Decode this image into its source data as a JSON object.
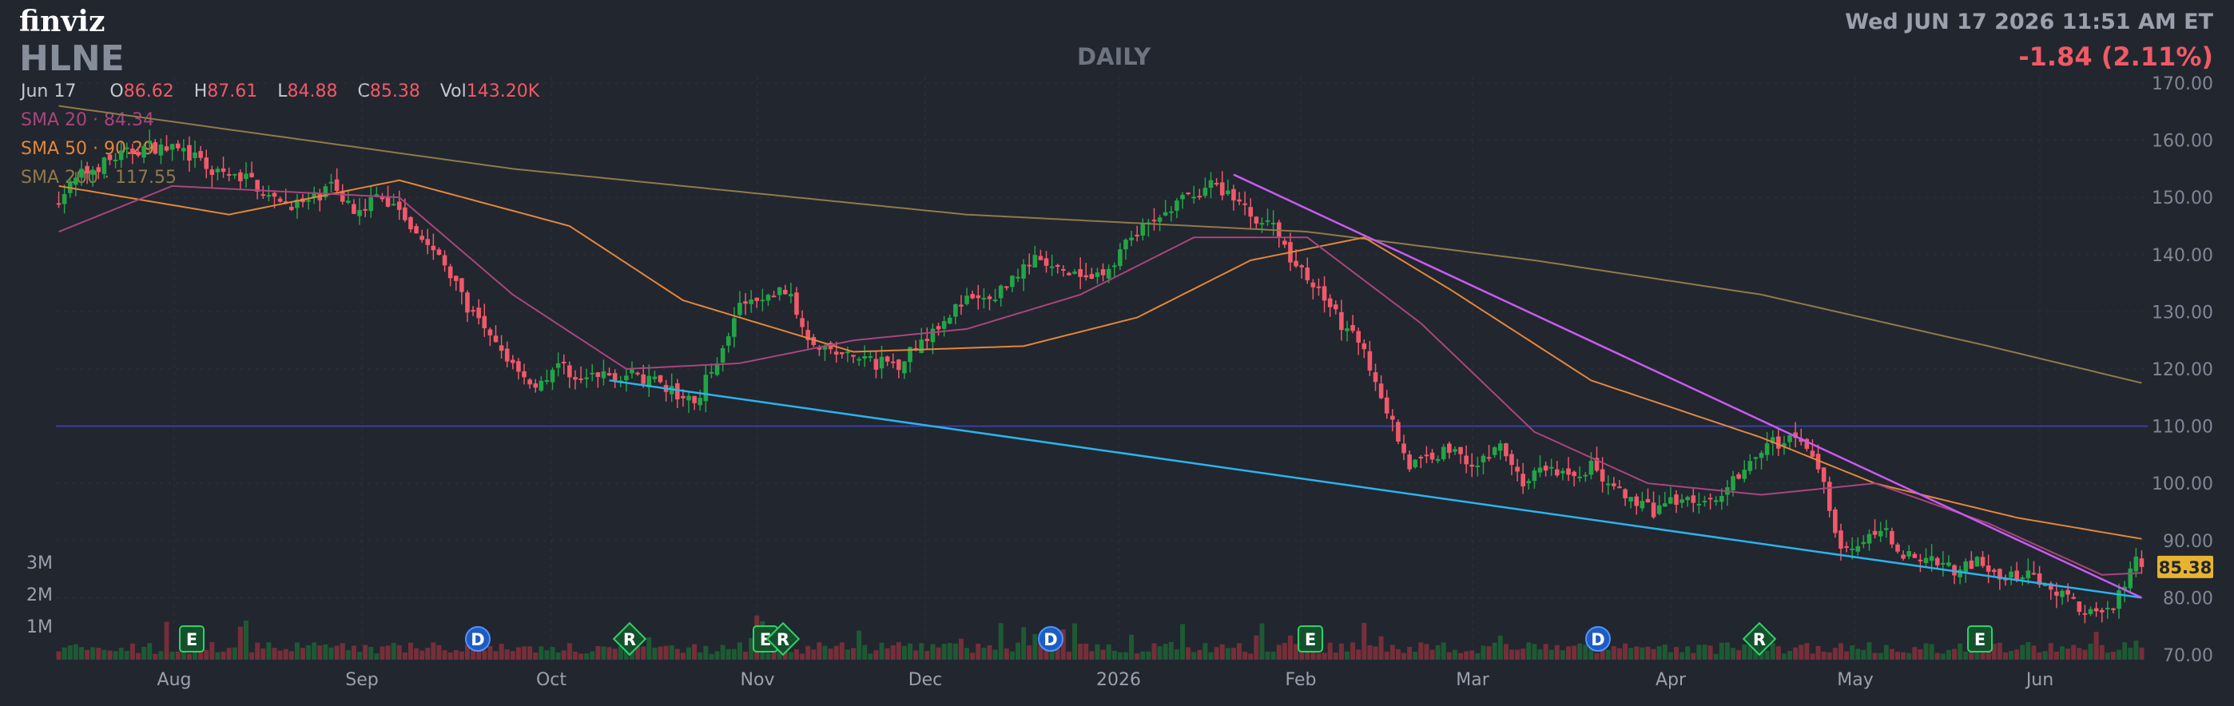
{
  "header": {
    "logo": "finviz",
    "ticker": "HLNE",
    "period": "DAILY",
    "datetime": "Wed JUN 17 2026 11:51 AM ET",
    "change": "-1.84 (2.11%)"
  },
  "ohlc": {
    "date": "Jun 17",
    "open_label": "O",
    "open": "86.62",
    "high_label": "H",
    "high": "87.61",
    "low_label": "L",
    "low": "84.88",
    "close_label": "C",
    "close": "85.38",
    "vol_label": "Vol",
    "vol": "143.20K"
  },
  "sma": [
    {
      "label": "SMA 20",
      "value": "84.34",
      "color": "#a8457e"
    },
    {
      "label": "SMA 50",
      "value": "90.29",
      "color": "#e3873a"
    },
    {
      "label": "SMA 200",
      "value": "117.55",
      "color": "#8f7a4a"
    }
  ],
  "price_tag": "85.38",
  "colors": {
    "up": "#22a447",
    "down": "#f0596a",
    "bg": "#22262f",
    "blue_trend": "#2ab4ee",
    "magenta_trend": "#c75bf0"
  },
  "chart_data": {
    "type": "candlestick",
    "y_ticks": [
      "170.00",
      "160.00",
      "150.00",
      "140.00",
      "130.00",
      "120.00",
      "110.00",
      "100.00",
      "90.00",
      "80.00",
      "70.00"
    ],
    "ylim": [
      70,
      170
    ],
    "volume_ticks": [
      "3M",
      "2M",
      "1M"
    ],
    "x_labels": [
      "Aug",
      "Sep",
      "Oct",
      "Nov",
      "Dec",
      "2026",
      "Feb",
      "Mar",
      "Apr",
      "May",
      "Jun"
    ],
    "horizontal_line": 110,
    "events": [
      {
        "label": "E",
        "kind": "earnings",
        "month": "Aug"
      },
      {
        "label": "D",
        "kind": "dividend",
        "month": "Sep"
      },
      {
        "label": "R",
        "kind": "rating",
        "month": "Oct"
      },
      {
        "label": "E",
        "kind": "earnings",
        "month": "Nov"
      },
      {
        "label": "R",
        "kind": "rating",
        "month": "Nov"
      },
      {
        "label": "D",
        "kind": "dividend",
        "month": "Dec"
      },
      {
        "label": "E",
        "kind": "earnings",
        "month": "Feb"
      },
      {
        "label": "D",
        "kind": "dividend",
        "month": "Mar"
      },
      {
        "label": "R",
        "kind": "rating",
        "month": "Apr"
      },
      {
        "label": "E",
        "kind": "earnings",
        "month": "May"
      }
    ],
    "price_anchors": [
      [
        0,
        150
      ],
      [
        4,
        154
      ],
      [
        10,
        157
      ],
      [
        16,
        159
      ],
      [
        22,
        158
      ],
      [
        28,
        154
      ],
      [
        34,
        153
      ],
      [
        38,
        149
      ],
      [
        44,
        149
      ],
      [
        48,
        152
      ],
      [
        52,
        148
      ],
      [
        56,
        150
      ],
      [
        60,
        148
      ],
      [
        64,
        143
      ],
      [
        68,
        138
      ],
      [
        72,
        131
      ],
      [
        76,
        125
      ],
      [
        80,
        121
      ],
      [
        84,
        117
      ],
      [
        88,
        121
      ],
      [
        92,
        118
      ],
      [
        96,
        119
      ],
      [
        100,
        119
      ],
      [
        104,
        118
      ],
      [
        108,
        116
      ],
      [
        112,
        114
      ],
      [
        116,
        122
      ],
      [
        120,
        131
      ],
      [
        124,
        132
      ],
      [
        128,
        134
      ],
      [
        132,
        126
      ],
      [
        136,
        123
      ],
      [
        140,
        122
      ],
      [
        144,
        121
      ],
      [
        148,
        121
      ],
      [
        152,
        125
      ],
      [
        156,
        129
      ],
      [
        160,
        132
      ],
      [
        164,
        132
      ],
      [
        168,
        136
      ],
      [
        172,
        139
      ],
      [
        176,
        137
      ],
      [
        180,
        136
      ],
      [
        184,
        136
      ],
      [
        188,
        142
      ],
      [
        192,
        145
      ],
      [
        196,
        148
      ],
      [
        200,
        151
      ],
      [
        203,
        152
      ],
      [
        206,
        151
      ],
      [
        210,
        147
      ],
      [
        214,
        145
      ],
      [
        218,
        138
      ],
      [
        222,
        134
      ],
      [
        226,
        128
      ],
      [
        230,
        123
      ],
      [
        234,
        113
      ],
      [
        238,
        103
      ],
      [
        242,
        105
      ],
      [
        246,
        106
      ],
      [
        250,
        103
      ],
      [
        254,
        107
      ],
      [
        258,
        100
      ],
      [
        262,
        103
      ],
      [
        266,
        101
      ],
      [
        270,
        103
      ],
      [
        274,
        99
      ],
      [
        278,
        96
      ],
      [
        282,
        95
      ],
      [
        286,
        98
      ],
      [
        290,
        96
      ],
      [
        294,
        100
      ],
      [
        298,
        104
      ],
      [
        302,
        107
      ],
      [
        306,
        108
      ],
      [
        310,
        103
      ],
      [
        314,
        89
      ],
      [
        318,
        90
      ],
      [
        322,
        91
      ],
      [
        326,
        87
      ],
      [
        330,
        87
      ],
      [
        334,
        85
      ],
      [
        338,
        86
      ],
      [
        342,
        83
      ],
      [
        346,
        84
      ],
      [
        350,
        83
      ],
      [
        354,
        80
      ],
      [
        358,
        77
      ],
      [
        362,
        79
      ],
      [
        366,
        86
      ],
      [
        367,
        85.38
      ]
    ],
    "sma20_anchors": [
      [
        0,
        144
      ],
      [
        20,
        152
      ],
      [
        40,
        151
      ],
      [
        60,
        150
      ],
      [
        80,
        133
      ],
      [
        100,
        120
      ],
      [
        120,
        121
      ],
      [
        140,
        125
      ],
      [
        160,
        127
      ],
      [
        180,
        133
      ],
      [
        200,
        143
      ],
      [
        220,
        143
      ],
      [
        240,
        128
      ],
      [
        260,
        109
      ],
      [
        280,
        100
      ],
      [
        300,
        98
      ],
      [
        320,
        100
      ],
      [
        340,
        93
      ],
      [
        360,
        84
      ],
      [
        367,
        84.34
      ]
    ],
    "sma50_anchors": [
      [
        0,
        152
      ],
      [
        30,
        147
      ],
      [
        60,
        153
      ],
      [
        90,
        145
      ],
      [
        110,
        132
      ],
      [
        140,
        123
      ],
      [
        170,
        124
      ],
      [
        190,
        129
      ],
      [
        210,
        139
      ],
      [
        230,
        143
      ],
      [
        245,
        134
      ],
      [
        270,
        118
      ],
      [
        300,
        108
      ],
      [
        320,
        100
      ],
      [
        345,
        94
      ],
      [
        367,
        90.29
      ]
    ],
    "sma200_anchors": [
      [
        0,
        166
      ],
      [
        80,
        155
      ],
      [
        160,
        147
      ],
      [
        220,
        144
      ],
      [
        260,
        139
      ],
      [
        300,
        133
      ],
      [
        340,
        124
      ],
      [
        367,
        117.55
      ]
    ],
    "trendlines": [
      {
        "name": "lower",
        "from": [
          97,
          118
        ],
        "to": [
          367,
          80
        ]
      },
      {
        "name": "upper",
        "from": [
          207,
          154
        ],
        "to": [
          367,
          80
        ]
      }
    ]
  }
}
